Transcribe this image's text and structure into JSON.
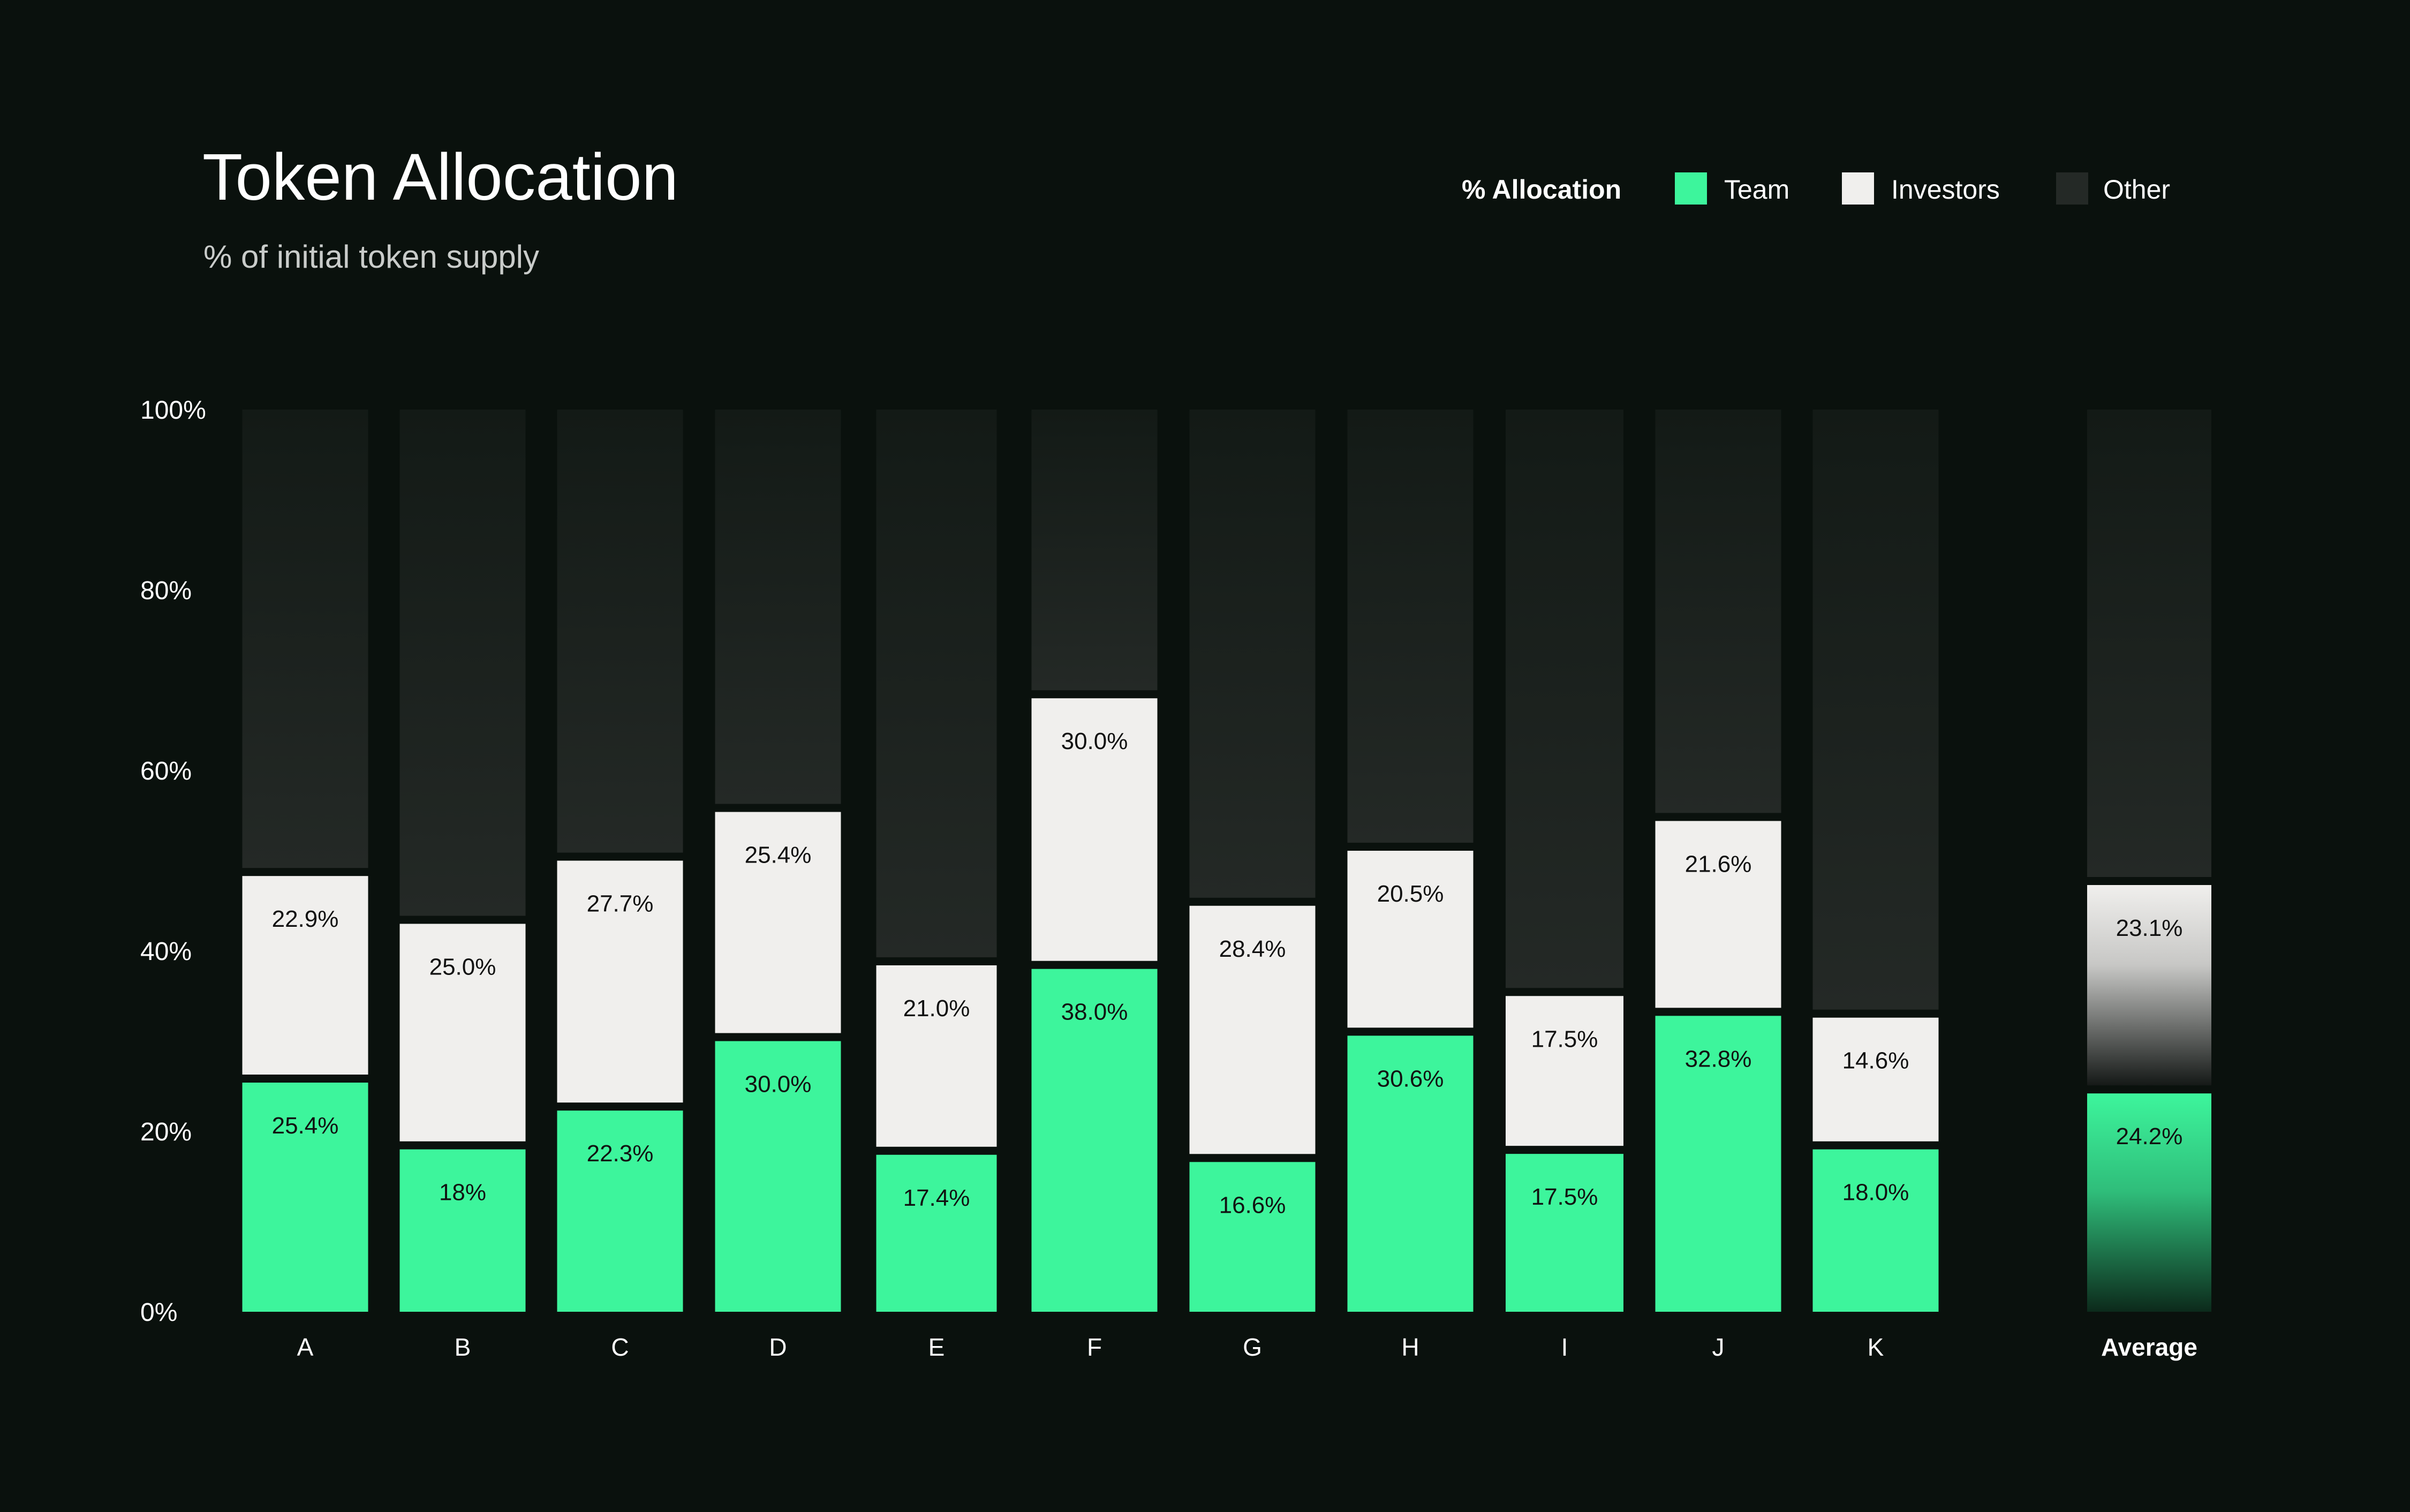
{
  "chart_data": {
    "type": "bar",
    "stacked": true,
    "title": "Token Allocation",
    "subtitle": "% of initial token supply",
    "legend": {
      "title": "% Allocation",
      "position": "top-right",
      "items": [
        "Team",
        "Investors",
        "Other"
      ]
    },
    "ylim": [
      0,
      100
    ],
    "yticks": [
      "0%",
      "20%",
      "40%",
      "60%",
      "80%",
      "100%"
    ],
    "grid": false,
    "categories": [
      "A",
      "B",
      "C",
      "D",
      "E",
      "F",
      "G",
      "H",
      "I",
      "J",
      "K"
    ],
    "series": [
      {
        "name": "Team",
        "values": [
          25.4,
          18.0,
          22.3,
          30.0,
          17.4,
          38.0,
          16.6,
          30.6,
          17.5,
          32.8,
          18.0
        ],
        "labels": [
          "25.4%",
          "18%",
          "22.3%",
          "30.0%",
          "17.4%",
          "38.0%",
          "16.6%",
          "30.6%",
          "17.5%",
          "32.8%",
          "18.0%"
        ]
      },
      {
        "name": "Investors",
        "values": [
          22.9,
          25.0,
          27.7,
          25.4,
          21.0,
          30.0,
          28.4,
          20.5,
          17.5,
          21.6,
          14.6
        ],
        "labels": [
          "22.9%",
          "25.0%",
          "27.7%",
          "25.4%",
          "21.0%",
          "30.0%",
          "28.4%",
          "20.5%",
          "17.5%",
          "21.6%",
          "14.6%"
        ]
      },
      {
        "name": "Other",
        "values": [
          51.7,
          57.0,
          50.0,
          44.6,
          61.6,
          32.0,
          55.0,
          48.9,
          65.0,
          45.6,
          67.4
        ],
        "labels": [
          "",
          "",
          "",
          "",
          "",
          "",
          "",
          "",
          "",
          "",
          ""
        ]
      }
    ],
    "average": {
      "label": "Average",
      "team": 24.2,
      "team_label": "24.2%",
      "investors": 23.1,
      "investors_label": "23.1%",
      "other": 52.7
    },
    "colors": {
      "background": "#0a110d",
      "team": "#3df59c",
      "investors": "#f0efed",
      "other_top": "#131a16",
      "other_bottom": "#242926",
      "text_light": "#ffffff",
      "text_muted": "#c9ccca",
      "label_dark": "#111111"
    }
  }
}
